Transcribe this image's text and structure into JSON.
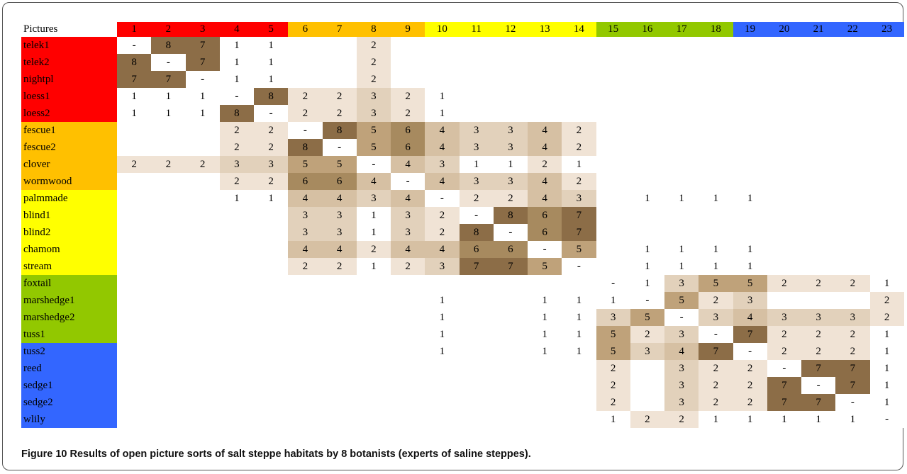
{
  "table": {
    "corner": "Pictures",
    "columns": [
      1,
      2,
      3,
      4,
      5,
      6,
      7,
      8,
      9,
      10,
      11,
      12,
      13,
      14,
      15,
      16,
      17,
      18,
      19,
      20,
      21,
      22,
      23
    ],
    "column_colors": [
      "#ff0000",
      "#ff0000",
      "#ff0000",
      "#ff0000",
      "#ff0000",
      "#ffc000",
      "#ffc000",
      "#ffc000",
      "#ffc000",
      "#ffff00",
      "#ffff00",
      "#ffff00",
      "#ffff00",
      "#ffff00",
      "#92c800",
      "#92c800",
      "#92c800",
      "#92c800",
      "#3366ff",
      "#3366ff",
      "#3366ff",
      "#3366ff",
      "#3366ff"
    ],
    "rows": [
      {
        "label": "telek1",
        "values": [
          "-",
          8,
          7,
          1,
          1,
          null,
          null,
          2,
          null,
          null,
          null,
          null,
          null,
          null,
          null,
          null,
          null,
          null,
          null,
          null,
          null,
          null,
          null
        ]
      },
      {
        "label": "telek2",
        "values": [
          8,
          "-",
          7,
          1,
          1,
          null,
          null,
          2,
          null,
          null,
          null,
          null,
          null,
          null,
          null,
          null,
          null,
          null,
          null,
          null,
          null,
          null,
          null
        ]
      },
      {
        "label": "nightpl",
        "values": [
          7,
          7,
          "-",
          1,
          1,
          null,
          null,
          2,
          null,
          null,
          null,
          null,
          null,
          null,
          null,
          null,
          null,
          null,
          null,
          null,
          null,
          null,
          null
        ]
      },
      {
        "label": "loess1",
        "values": [
          1,
          1,
          1,
          "-",
          8,
          2,
          2,
          3,
          2,
          1,
          null,
          null,
          null,
          null,
          null,
          null,
          null,
          null,
          null,
          null,
          null,
          null,
          null
        ]
      },
      {
        "label": "loess2",
        "values": [
          1,
          1,
          1,
          8,
          "-",
          2,
          2,
          3,
          2,
          1,
          null,
          null,
          null,
          null,
          null,
          null,
          null,
          null,
          null,
          null,
          null,
          null,
          null
        ]
      },
      {
        "label": "fescue1",
        "values": [
          null,
          null,
          null,
          2,
          2,
          "-",
          8,
          5,
          6,
          4,
          3,
          3,
          4,
          2,
          null,
          null,
          null,
          null,
          null,
          null,
          null,
          null,
          null
        ]
      },
      {
        "label": "fescue2",
        "values": [
          null,
          null,
          null,
          2,
          2,
          8,
          "-",
          5,
          6,
          4,
          3,
          3,
          4,
          2,
          null,
          null,
          null,
          null,
          null,
          null,
          null,
          null,
          null
        ]
      },
      {
        "label": "clover",
        "values": [
          2,
          2,
          2,
          3,
          3,
          5,
          5,
          "-",
          4,
          3,
          1,
          1,
          2,
          1,
          null,
          null,
          null,
          null,
          null,
          null,
          null,
          null,
          null
        ]
      },
      {
        "label": "wormwood",
        "values": [
          null,
          null,
          null,
          2,
          2,
          6,
          6,
          4,
          "-",
          4,
          3,
          3,
          4,
          2,
          null,
          null,
          null,
          null,
          null,
          null,
          null,
          null,
          null
        ]
      },
      {
        "label": "palmmade",
        "values": [
          null,
          null,
          null,
          1,
          1,
          4,
          4,
          3,
          4,
          "-",
          2,
          2,
          4,
          3,
          null,
          1,
          1,
          1,
          1,
          null,
          null,
          null,
          null
        ]
      },
      {
        "label": "blind1",
        "values": [
          null,
          null,
          null,
          null,
          null,
          3,
          3,
          1,
          3,
          2,
          "-",
          8,
          6,
          7,
          null,
          null,
          null,
          null,
          null,
          null,
          null,
          null,
          null
        ]
      },
      {
        "label": "blind2",
        "values": [
          null,
          null,
          null,
          null,
          null,
          3,
          3,
          1,
          3,
          2,
          8,
          "-",
          6,
          7,
          null,
          null,
          null,
          null,
          null,
          null,
          null,
          null,
          null
        ]
      },
      {
        "label": "chamom",
        "values": [
          null,
          null,
          null,
          null,
          null,
          4,
          4,
          2,
          4,
          4,
          6,
          6,
          "-",
          5,
          null,
          1,
          1,
          1,
          1,
          null,
          null,
          null,
          null
        ]
      },
      {
        "label": "stream",
        "values": [
          null,
          null,
          null,
          null,
          null,
          2,
          2,
          1,
          2,
          3,
          7,
          7,
          5,
          "-",
          null,
          1,
          1,
          1,
          1,
          null,
          null,
          null,
          null
        ]
      },
      {
        "label": "foxtail",
        "values": [
          null,
          null,
          null,
          null,
          null,
          null,
          null,
          null,
          null,
          null,
          null,
          null,
          null,
          null,
          "-",
          1,
          3,
          5,
          5,
          2,
          2,
          2,
          1
        ]
      },
      {
        "label": "marshedge1",
        "values": [
          null,
          null,
          null,
          null,
          null,
          null,
          null,
          null,
          null,
          1,
          null,
          null,
          1,
          1,
          1,
          "-",
          5,
          2,
          3,
          null,
          null,
          null,
          2
        ]
      },
      {
        "label": "marshedge2",
        "values": [
          null,
          null,
          null,
          null,
          null,
          null,
          null,
          null,
          null,
          1,
          null,
          null,
          1,
          1,
          3,
          5,
          "-",
          3,
          4,
          3,
          3,
          3,
          2
        ]
      },
      {
        "label": "tuss1",
        "values": [
          null,
          null,
          null,
          null,
          null,
          null,
          null,
          null,
          null,
          1,
          null,
          null,
          1,
          1,
          5,
          2,
          3,
          "-",
          7,
          2,
          2,
          2,
          1
        ]
      },
      {
        "label": "tuss2",
        "values": [
          null,
          null,
          null,
          null,
          null,
          null,
          null,
          null,
          null,
          1,
          null,
          null,
          1,
          1,
          5,
          3,
          4,
          7,
          "-",
          2,
          2,
          2,
          1
        ]
      },
      {
        "label": "reed",
        "values": [
          null,
          null,
          null,
          null,
          null,
          null,
          null,
          null,
          null,
          null,
          null,
          null,
          null,
          null,
          2,
          null,
          3,
          2,
          2,
          "-",
          7,
          7,
          1
        ]
      },
      {
        "label": "sedge1",
        "values": [
          null,
          null,
          null,
          null,
          null,
          null,
          null,
          null,
          null,
          null,
          null,
          null,
          null,
          null,
          2,
          null,
          3,
          2,
          2,
          7,
          "-",
          7,
          1
        ]
      },
      {
        "label": "sedge2",
        "values": [
          null,
          null,
          null,
          null,
          null,
          null,
          null,
          null,
          null,
          null,
          null,
          null,
          null,
          null,
          2,
          null,
          3,
          2,
          2,
          7,
          7,
          "-",
          1
        ]
      },
      {
        "label": "wlily",
        "values": [
          null,
          null,
          null,
          null,
          null,
          null,
          null,
          null,
          null,
          null,
          null,
          null,
          null,
          null,
          1,
          2,
          2,
          1,
          1,
          1,
          1,
          1,
          "-"
        ]
      }
    ]
  },
  "caption": "Figure 10 Results of open picture sorts of salt steppe habitats by 8 botanists (experts of saline steppes)."
}
